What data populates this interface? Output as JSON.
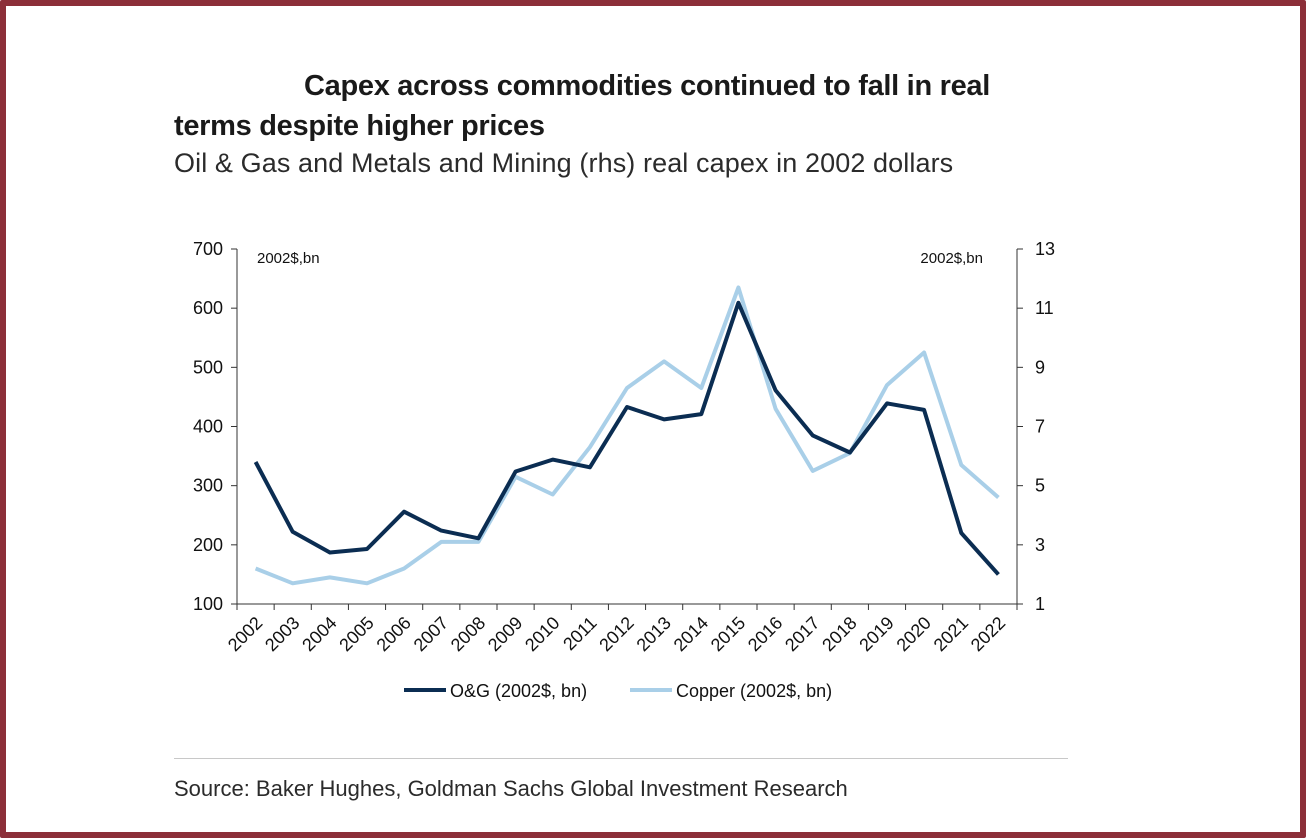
{
  "title": "Capex across commodities continued to fall in real terms despite higher prices",
  "subtitle": "Oil & Gas and Metals and Mining (rhs) real capex in 2002 dollars",
  "source": "Source: Baker Hughes, Goldman Sachs Global Investment Research",
  "chart_data": {
    "type": "line",
    "x": [
      "2002",
      "2003",
      "2004",
      "2005",
      "2006",
      "2007",
      "2008",
      "2009",
      "2010",
      "2011",
      "2012",
      "2013",
      "2014",
      "2015",
      "2016",
      "2017",
      "2018",
      "2019",
      "2020",
      "2021",
      "2022"
    ],
    "left_axis": {
      "unit_label": "2002$,bn",
      "ylim": [
        100,
        700
      ],
      "ticks": [
        700,
        600,
        500,
        400,
        300,
        200,
        100
      ]
    },
    "right_axis": {
      "unit_label": "2002$,bn",
      "ylim": [
        1,
        13
      ],
      "ticks": [
        13,
        11,
        9,
        7,
        5,
        3,
        1
      ]
    },
    "series": [
      {
        "name": "O&G (2002$, bn)",
        "axis": "left",
        "color": "#0b2d52",
        "values": [
          340,
          222,
          187,
          193,
          256,
          224,
          211,
          324,
          344,
          331,
          433,
          412,
          421,
          609,
          461,
          385,
          356,
          439,
          428,
          220,
          150
        ]
      },
      {
        "name": "Copper (2002$, bn)",
        "axis": "right",
        "color": "#a9cfe8",
        "values": [
          2.2,
          1.7,
          1.9,
          1.7,
          2.2,
          3.1,
          3.1,
          5.3,
          4.7,
          6.3,
          8.3,
          9.2,
          8.3,
          11.7,
          7.6,
          5.5,
          6.1,
          8.4,
          9.5,
          5.7,
          4.6
        ]
      }
    ],
    "legend_position": "bottom",
    "grid": false
  }
}
